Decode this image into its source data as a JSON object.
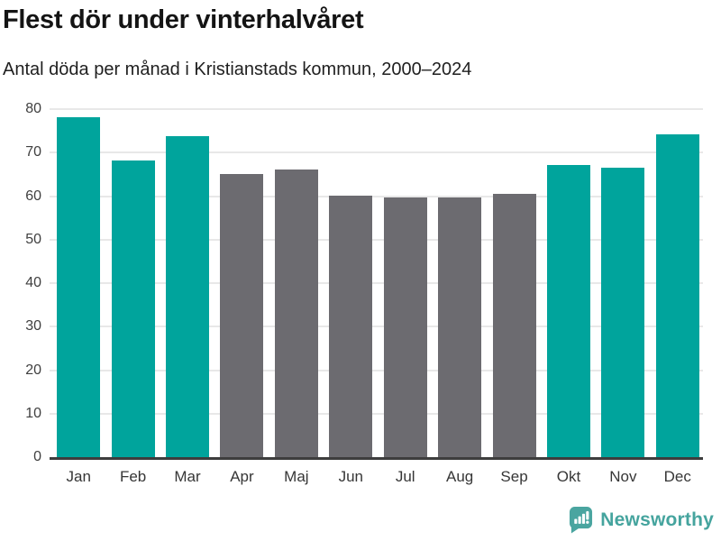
{
  "title": "Flest dör under vinterhalvåret",
  "subtitle": "Antal döda per månad i Kristianstads kommun, 2000–2024",
  "chart_data": {
    "type": "bar",
    "title": "Flest dör under vinterhalvåret",
    "subtitle": "Antal döda per månad i Kristianstads kommun, 2000–2024",
    "categories": [
      "Jan",
      "Feb",
      "Mar",
      "Apr",
      "Maj",
      "Jun",
      "Jul",
      "Aug",
      "Sep",
      "Okt",
      "Nov",
      "Dec"
    ],
    "values": [
      78.2,
      68.2,
      73.8,
      65.1,
      66.1,
      60.2,
      59.7,
      59.7,
      60.5,
      67.1,
      66.5,
      74.2
    ],
    "bar_groups": [
      "winter",
      "winter",
      "winter",
      "summer",
      "summer",
      "summer",
      "summer",
      "summer",
      "summer",
      "winter",
      "winter",
      "winter"
    ],
    "xlabel": "",
    "ylabel": "",
    "ylim": [
      0,
      80
    ],
    "yticks": [
      0,
      10,
      20,
      30,
      40,
      50,
      60,
      70,
      80
    ],
    "grid": true,
    "legend": "none",
    "colors": {
      "winter_bar": "#00a49c",
      "summer_bar": "#6c6b70",
      "gridline": "#e8e8e8",
      "axis_line": "#3d3d3d",
      "tick_text": "#3f3f3f"
    }
  },
  "footer": {
    "brand": "Newsworthy",
    "brand_color": "#45a49e",
    "logo_icon": "newsworthy-speech-bubble-chart-icon"
  }
}
